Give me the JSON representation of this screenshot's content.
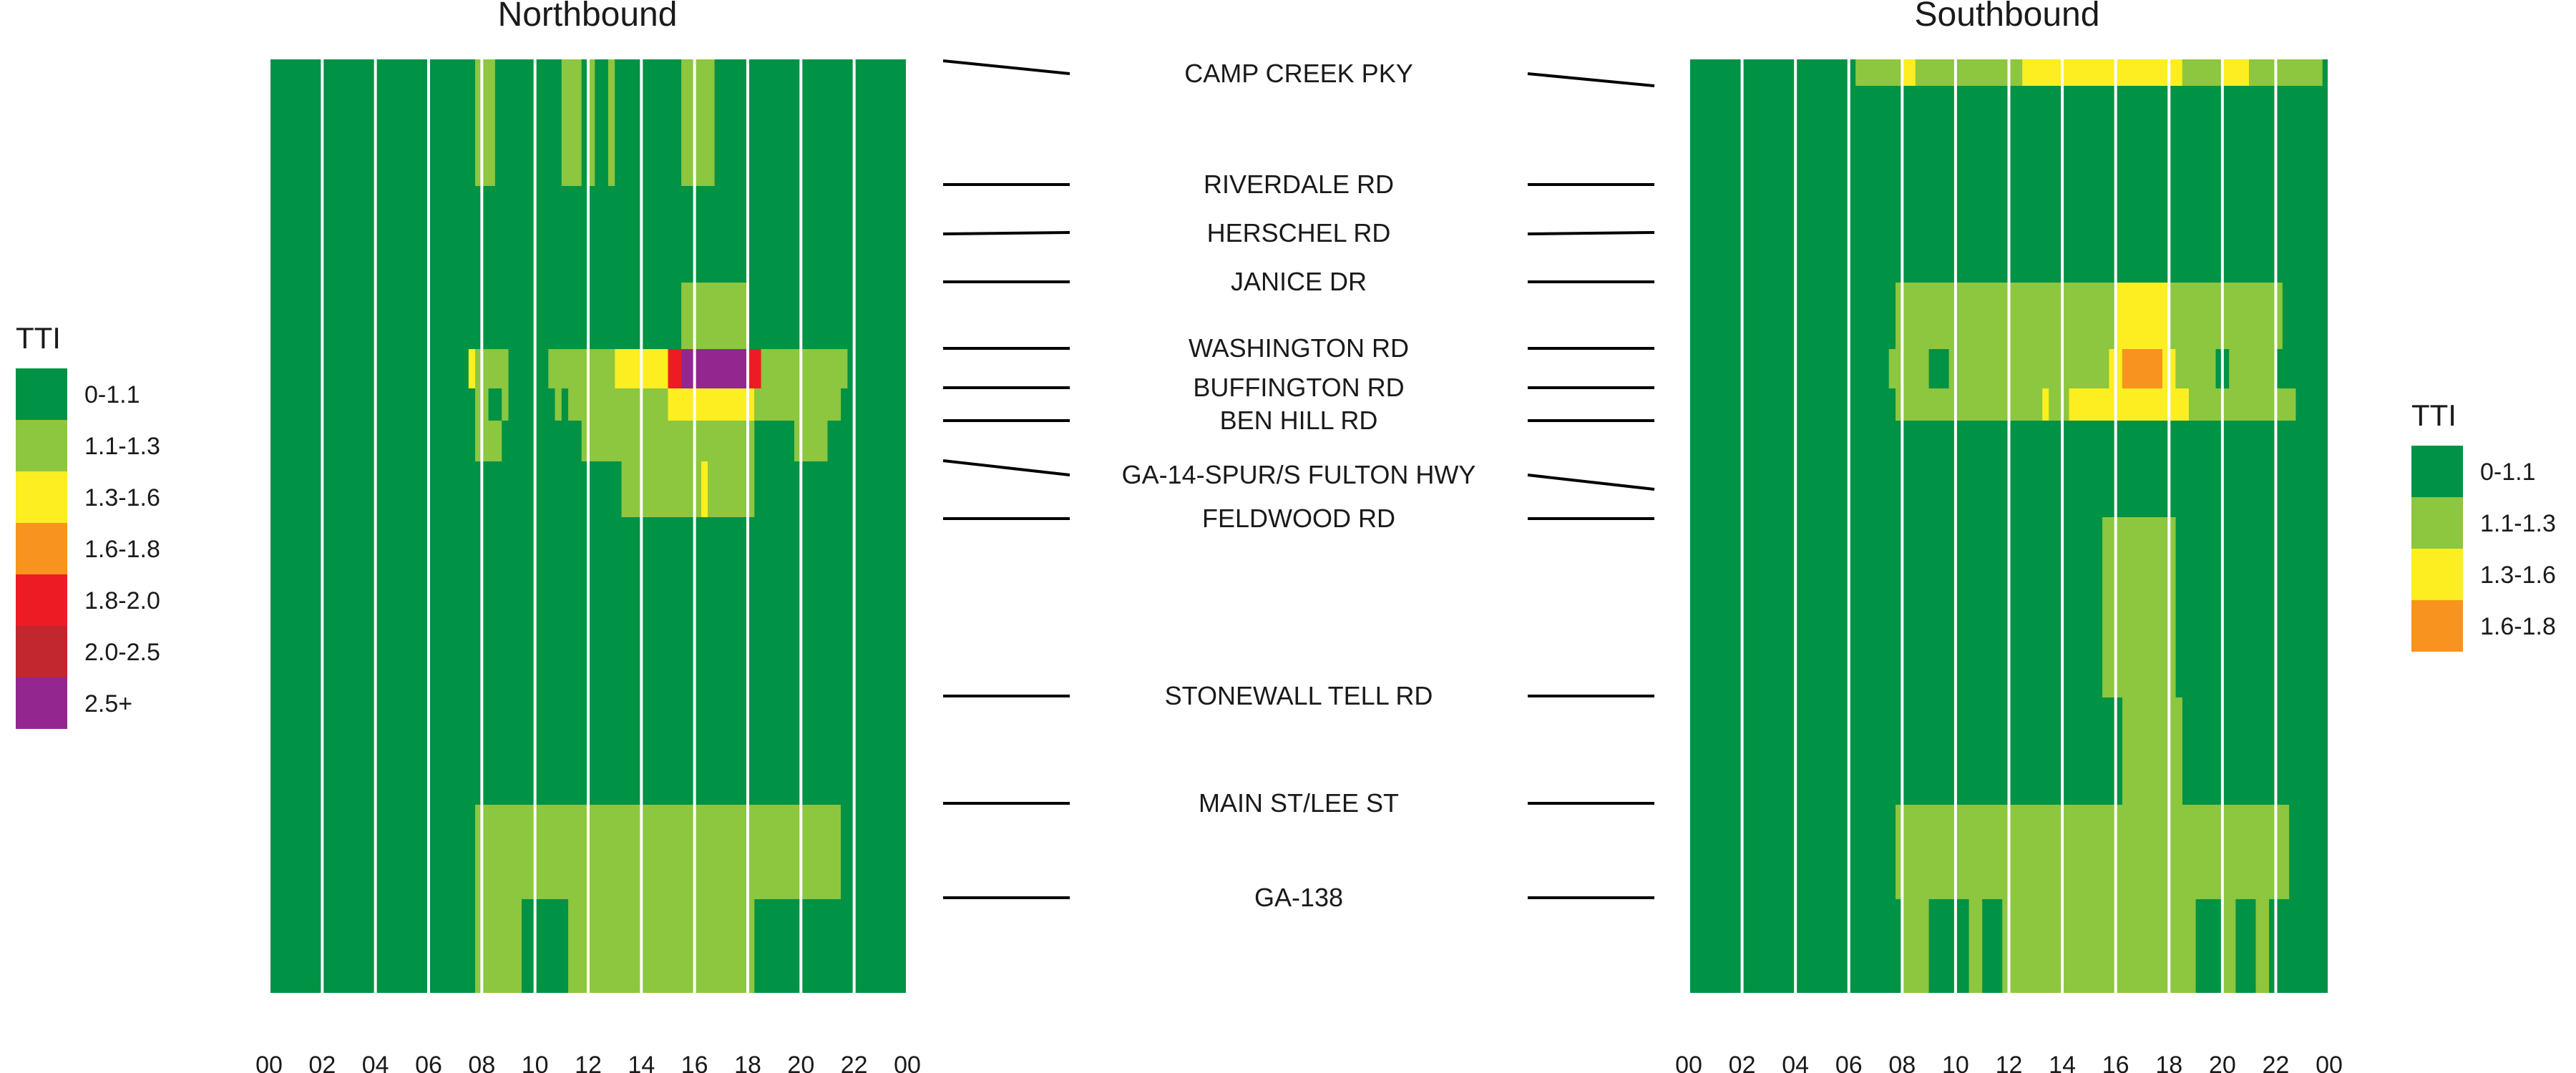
{
  "panels": [
    {
      "title": "Northbound",
      "xticks": [
        "00",
        "02",
        "04",
        "06",
        "08",
        "10",
        "12",
        "14",
        "16",
        "18",
        "20",
        "22",
        "00"
      ]
    },
    {
      "title": "Southbound",
      "xticks": [
        "00",
        "02",
        "04",
        "06",
        "08",
        "10",
        "12",
        "14",
        "16",
        "18",
        "20",
        "22",
        "00"
      ]
    }
  ],
  "legends": [
    {
      "title": "TTI",
      "items": [
        {
          "label": "0-1.1",
          "color": "#009245"
        },
        {
          "label": "1.1-1.3",
          "color": "#8dc63f"
        },
        {
          "label": "1.3-1.6",
          "color": "#fcee21"
        },
        {
          "label": "1.6-1.8",
          "color": "#f7931e"
        },
        {
          "label": "1.8-2.0",
          "color": "#ed1c24"
        },
        {
          "label": "2.0-2.5",
          "color": "#c1272d"
        },
        {
          "label": "2.5+",
          "color": "#93278f"
        }
      ]
    },
    {
      "title": "TTI",
      "items": [
        {
          "label": "0-1.1",
          "color": "#009245"
        },
        {
          "label": "1.1-1.3",
          "color": "#8dc63f"
        },
        {
          "label": "1.3-1.6",
          "color": "#fcee21"
        },
        {
          "label": "1.6-1.8",
          "color": "#f7931e"
        }
      ]
    }
  ],
  "roads": [
    "CAMP CREEK PKY",
    "RIVERDALE RD",
    "HERSCHEL RD",
    "JANICE DR",
    "WASHINGTON RD",
    "BUFFINGTON RD",
    "BEN HILL RD",
    "GA-14-SPUR/S FULTON HWY",
    "FELDWOOD RD",
    "STONEWALL TELL RD",
    "MAIN ST/LEE ST",
    "GA-138"
  ],
  "chart_data": [
    {
      "type": "heatmap",
      "title": "Northbound",
      "x_unit": "hour",
      "xlim": [
        0,
        24
      ],
      "base_category": "0-1.1",
      "cells": [
        {
          "road": "CAMP CREEK PKY",
          "hours": [
            7.75,
            8.5
          ],
          "category": "1.1-1.3"
        },
        {
          "road": "CAMP CREEK PKY",
          "hours": [
            11.0,
            11.75
          ],
          "category": "1.1-1.3"
        },
        {
          "road": "CAMP CREEK PKY",
          "hours": [
            12.0,
            12.25
          ],
          "category": "1.1-1.3"
        },
        {
          "road": "CAMP CREEK PKY",
          "hours": [
            12.75,
            13.0
          ],
          "category": "1.1-1.3"
        },
        {
          "road": "CAMP CREEK PKY",
          "hours": [
            15.5,
            16.75
          ],
          "category": "1.1-1.3"
        },
        {
          "road": "JANICE DR",
          "hours": [
            15.5,
            18.0
          ],
          "category": "1.1-1.3"
        },
        {
          "road": "WASHINGTON RD",
          "hours": [
            7.5,
            7.75
          ],
          "category": "1.3-1.6"
        },
        {
          "road": "WASHINGTON RD",
          "hours": [
            7.75,
            9.0
          ],
          "category": "1.1-1.3"
        },
        {
          "road": "WASHINGTON RD",
          "hours": [
            10.5,
            13.0
          ],
          "category": "1.1-1.3"
        },
        {
          "road": "WASHINGTON RD",
          "hours": [
            13.0,
            15.0
          ],
          "category": "1.3-1.6"
        },
        {
          "road": "WASHINGTON RD",
          "hours": [
            15.0,
            15.5
          ],
          "category": "1.8-2.0"
        },
        {
          "road": "WASHINGTON RD",
          "hours": [
            15.5,
            18.0
          ],
          "category": "2.5+"
        },
        {
          "road": "WASHINGTON RD",
          "hours": [
            18.0,
            18.5
          ],
          "category": "1.8-2.0"
        },
        {
          "road": "WASHINGTON RD",
          "hours": [
            18.5,
            21.75
          ],
          "category": "1.1-1.3"
        },
        {
          "road": "BUFFINGTON RD",
          "hours": [
            7.75,
            8.25
          ],
          "category": "1.1-1.3"
        },
        {
          "road": "BUFFINGTON RD",
          "hours": [
            8.75,
            9.0
          ],
          "category": "1.1-1.3"
        },
        {
          "road": "BUFFINGTON RD",
          "hours": [
            10.75,
            11.0
          ],
          "category": "1.1-1.3"
        },
        {
          "road": "BUFFINGTON RD",
          "hours": [
            11.25,
            15.0
          ],
          "category": "1.1-1.3"
        },
        {
          "road": "BUFFINGTON RD",
          "hours": [
            15.0,
            18.25
          ],
          "category": "1.3-1.6"
        },
        {
          "road": "BUFFINGTON RD",
          "hours": [
            18.25,
            21.5
          ],
          "category": "1.1-1.3"
        },
        {
          "road": "BEN HILL RD",
          "hours": [
            7.75,
            8.75
          ],
          "category": "1.1-1.3"
        },
        {
          "road": "BEN HILL RD",
          "hours": [
            11.75,
            18.25
          ],
          "category": "1.1-1.3"
        },
        {
          "road": "BEN HILL RD",
          "hours": [
            19.75,
            21.0
          ],
          "category": "1.1-1.3"
        },
        {
          "road": "GA-14-SPUR/S FULTON HWY",
          "hours": [
            13.25,
            16.25
          ],
          "category": "1.1-1.3"
        },
        {
          "road": "GA-14-SPUR/S FULTON HWY",
          "hours": [
            16.25,
            16.5
          ],
          "category": "1.3-1.6"
        },
        {
          "road": "GA-14-SPUR/S FULTON HWY",
          "hours": [
            16.5,
            18.25
          ],
          "category": "1.1-1.3"
        },
        {
          "road": "MAIN ST/LEE ST",
          "hours": [
            7.75,
            21.5
          ],
          "category": "1.1-1.3"
        },
        {
          "road": "GA-138",
          "hours": [
            7.75,
            9.5
          ],
          "category": "1.1-1.3"
        },
        {
          "road": "GA-138",
          "hours": [
            11.25,
            18.25
          ],
          "category": "1.1-1.3"
        }
      ]
    },
    {
      "type": "heatmap",
      "title": "Southbound",
      "x_unit": "hour",
      "xlim": [
        0,
        24
      ],
      "base_category": "0-1.1",
      "cells": [
        {
          "road": "CAMP CREEK PKY",
          "hours": [
            6.25,
            8.0
          ],
          "category": "1.1-1.3"
        },
        {
          "road": "CAMP CREEK PKY",
          "hours": [
            8.0,
            8.5
          ],
          "category": "1.3-1.6"
        },
        {
          "road": "CAMP CREEK PKY",
          "hours": [
            8.5,
            12.5
          ],
          "category": "1.1-1.3"
        },
        {
          "road": "CAMP CREEK PKY",
          "hours": [
            12.5,
            18.5
          ],
          "category": "1.3-1.6"
        },
        {
          "road": "CAMP CREEK PKY",
          "hours": [
            18.5,
            20.0
          ],
          "category": "1.1-1.3"
        },
        {
          "road": "CAMP CREEK PKY",
          "hours": [
            20.0,
            21.0
          ],
          "category": "1.3-1.6"
        },
        {
          "road": "CAMP CREEK PKY",
          "hours": [
            21.0,
            23.75
          ],
          "category": "1.1-1.3"
        },
        {
          "road": "JANICE DR",
          "hours": [
            7.75,
            16.0
          ],
          "category": "1.1-1.3"
        },
        {
          "road": "JANICE DR",
          "hours": [
            16.0,
            18.0
          ],
          "category": "1.3-1.6"
        },
        {
          "road": "JANICE DR",
          "hours": [
            18.0,
            22.25
          ],
          "category": "1.1-1.3"
        },
        {
          "road": "WASHINGTON RD",
          "hours": [
            7.5,
            9.0
          ],
          "category": "1.1-1.3"
        },
        {
          "road": "WASHINGTON RD",
          "hours": [
            9.75,
            15.75
          ],
          "category": "1.1-1.3"
        },
        {
          "road": "WASHINGTON RD",
          "hours": [
            15.75,
            16.25
          ],
          "category": "1.3-1.6"
        },
        {
          "road": "WASHINGTON RD",
          "hours": [
            16.25,
            17.75
          ],
          "category": "1.6-1.8"
        },
        {
          "road": "WASHINGTON RD",
          "hours": [
            17.75,
            18.25
          ],
          "category": "1.3-1.6"
        },
        {
          "road": "WASHINGTON RD",
          "hours": [
            18.25,
            19.75
          ],
          "category": "1.1-1.3"
        },
        {
          "road": "WASHINGTON RD",
          "hours": [
            20.25,
            22.0
          ],
          "category": "1.1-1.3"
        },
        {
          "road": "BUFFINGTON RD",
          "hours": [
            7.75,
            13.25
          ],
          "category": "1.1-1.3"
        },
        {
          "road": "BUFFINGTON RD",
          "hours": [
            13.25,
            13.5
          ],
          "category": "1.3-1.6"
        },
        {
          "road": "BUFFINGTON RD",
          "hours": [
            13.5,
            14.25
          ],
          "category": "1.1-1.3"
        },
        {
          "road": "BUFFINGTON RD",
          "hours": [
            14.25,
            18.75
          ],
          "category": "1.3-1.6"
        },
        {
          "road": "BUFFINGTON RD",
          "hours": [
            18.75,
            22.75
          ],
          "category": "1.1-1.3"
        },
        {
          "road": "FELDWOOD RD",
          "hours": [
            15.5,
            18.25
          ],
          "category": "1.1-1.3"
        },
        {
          "road": "STONEWALL TELL RD",
          "hours": [
            16.25,
            18.5
          ],
          "category": "1.1-1.3"
        },
        {
          "road": "MAIN ST/LEE ST",
          "hours": [
            7.75,
            22.5
          ],
          "category": "1.1-1.3"
        },
        {
          "road": "GA-138",
          "hours": [
            8.0,
            9.0
          ],
          "category": "1.1-1.3"
        },
        {
          "road": "GA-138",
          "hours": [
            10.5,
            11.0
          ],
          "category": "1.1-1.3"
        },
        {
          "road": "GA-138",
          "hours": [
            11.75,
            19.0
          ],
          "category": "1.1-1.3"
        },
        {
          "road": "GA-138",
          "hours": [
            20.0,
            20.5
          ],
          "category": "1.1-1.3"
        },
        {
          "road": "GA-138",
          "hours": [
            21.25,
            21.75
          ],
          "category": "1.1-1.3"
        }
      ]
    }
  ]
}
